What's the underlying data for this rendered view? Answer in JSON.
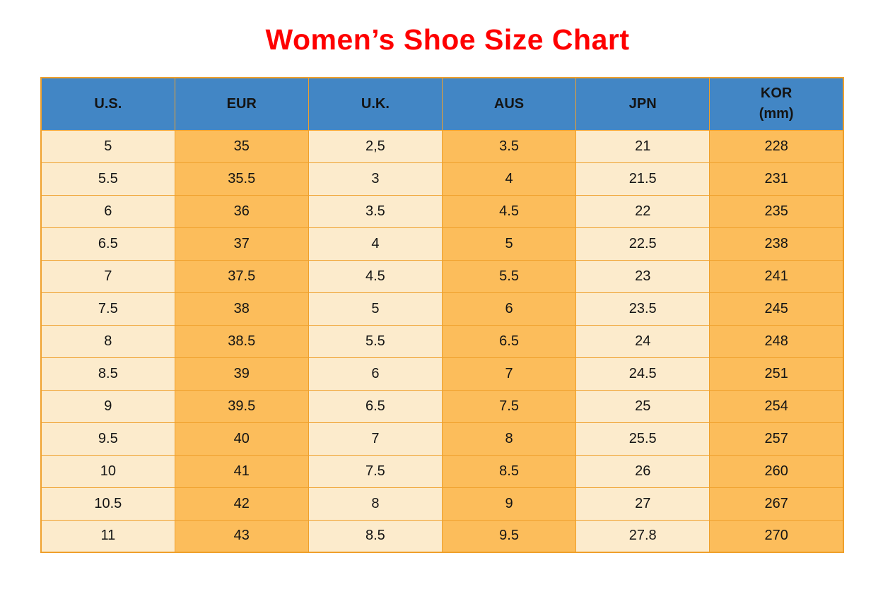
{
  "page": {
    "title": "Women’s Shoe Size Chart"
  },
  "chart_data": {
    "type": "table",
    "title": "Women’s Shoe Size Chart",
    "columns": [
      "U.S.",
      "EUR",
      "U.K.",
      "AUS",
      "JPN",
      "KOR\n(mm)"
    ],
    "rows": [
      [
        "5",
        "35",
        "2,5",
        "3.5",
        "21",
        "228"
      ],
      [
        "5.5",
        "35.5",
        "3",
        "4",
        "21.5",
        "231"
      ],
      [
        "6",
        "36",
        "3.5",
        "4.5",
        "22",
        "235"
      ],
      [
        "6.5",
        "37",
        "4",
        "5",
        "22.5",
        "238"
      ],
      [
        "7",
        "37.5",
        "4.5",
        "5.5",
        "23",
        "241"
      ],
      [
        "7.5",
        "38",
        "5",
        "6",
        "23.5",
        "245"
      ],
      [
        "8",
        "38.5",
        "5.5",
        "6.5",
        "24",
        "248"
      ],
      [
        "8.5",
        "39",
        "6",
        "7",
        "24.5",
        "251"
      ],
      [
        "9",
        "39.5",
        "6.5",
        "7.5",
        "25",
        "254"
      ],
      [
        "9.5",
        "40",
        "7",
        "8",
        "25.5",
        "257"
      ],
      [
        "10",
        "41",
        "7.5",
        "8.5",
        "26",
        "260"
      ],
      [
        "10.5",
        "42",
        "8",
        "9",
        "27",
        "267"
      ],
      [
        "11",
        "43",
        "8.5",
        "9.5",
        "27.8",
        "270"
      ]
    ],
    "layout": {
      "header_position": "top",
      "grid": true,
      "column_fill_pattern": [
        "cream",
        "orange",
        "cream",
        "orange",
        "cream",
        "orange"
      ]
    }
  },
  "colors": {
    "title": "#fe0000",
    "header_bg": "#4286c5",
    "header_text": "#000000",
    "cell_cream": "#fcebcc",
    "cell_orange": "#fcbd5b",
    "border": "#efa02c",
    "text": "#141414"
  }
}
